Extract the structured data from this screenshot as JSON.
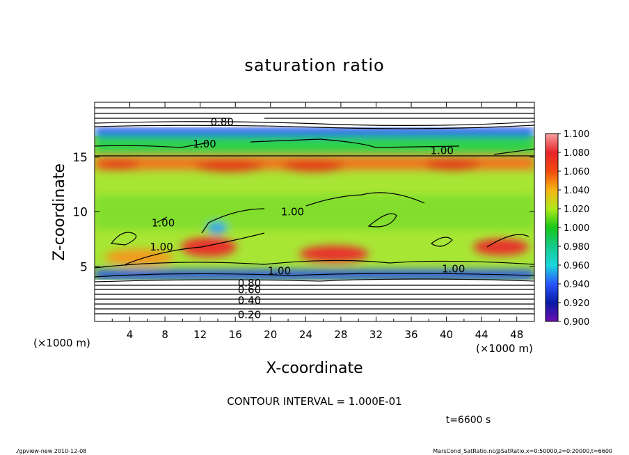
{
  "chart_data": {
    "type": "heatmap",
    "title": "saturation ratio",
    "xlabel": "X-coordinate",
    "ylabel": "Z-coordinate",
    "x_unit": "(×1000 m)",
    "z_unit": "(×1000 m)",
    "xlim": [
      0,
      50
    ],
    "zlim": [
      0,
      20
    ],
    "x_ticks": [
      "4",
      "8",
      "12",
      "16",
      "20",
      "24",
      "28",
      "32",
      "36",
      "40",
      "44",
      "48"
    ],
    "z_ticks": [
      "5",
      "10",
      "15"
    ],
    "colorbar_ticks": [
      "0.900",
      "0.920",
      "0.940",
      "0.960",
      "0.980",
      "1.000",
      "1.020",
      "1.040",
      "1.060",
      "1.080",
      "1.100"
    ],
    "colorbar_range": [
      0.9,
      1.1
    ],
    "contour_interval_text": "CONTOUR INTERVAL = 1.000E-01",
    "time_text": "t=6600 s",
    "contour_labels": [
      {
        "text": "0.80",
        "x": 14.5,
        "z": 18.2
      },
      {
        "text": "1.00",
        "x": 12.5,
        "z": 16.2
      },
      {
        "text": "1.00",
        "x": 39.5,
        "z": 15.6
      },
      {
        "text": "1.00",
        "x": 7.8,
        "z": 9.0
      },
      {
        "text": "1.00",
        "x": 22.5,
        "z": 10.0
      },
      {
        "text": "1.00",
        "x": 7.6,
        "z": 6.8
      },
      {
        "text": "1.00",
        "x": 21.0,
        "z": 4.6
      },
      {
        "text": "1.00",
        "x": 40.8,
        "z": 4.8
      },
      {
        "text": "0.80",
        "x": 17.6,
        "z": 3.5
      },
      {
        "text": "0.60",
        "x": 17.6,
        "z": 2.9
      },
      {
        "text": "0.40",
        "x": 17.6,
        "z": 1.9
      },
      {
        "text": "0.20",
        "x": 17.6,
        "z": 0.6
      }
    ],
    "field_regions": [
      {
        "desc": "upper band",
        "z_range": [
          16.9,
          17.6
        ],
        "value": 0.93
      },
      {
        "desc": "moist layer",
        "z_range": [
          14.6,
          15.4
        ],
        "value": 1.06
      },
      {
        "desc": "lower band",
        "z_range": [
          3.4,
          4.2
        ],
        "value": 0.94
      },
      {
        "desc": "subsaturated",
        "z_range": [
          0,
          3.4
        ],
        "value": 0.5
      }
    ],
    "grid": false,
    "legend": "colorbar right"
  },
  "footer": {
    "left": "./gpview-new   2010-12-08",
    "right": "MarsCond_SatRatio.nc@SatRatio,x=0:50000,z=0:20000,t=6600"
  }
}
